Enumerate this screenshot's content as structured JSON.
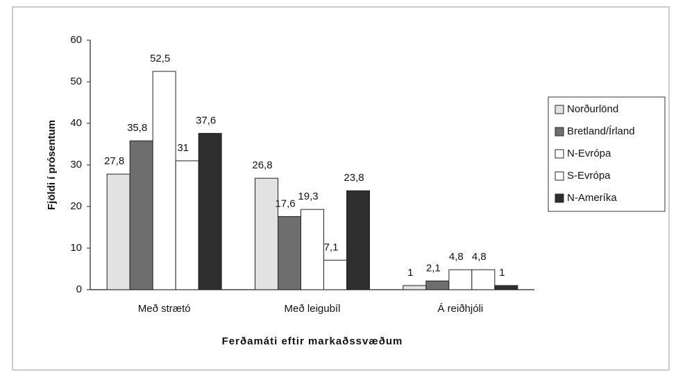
{
  "chart_data": {
    "type": "bar",
    "x_label": "Ferðamáti eftir markaðssvæðum",
    "y_label": "Fjöldi í prósentum",
    "categories": [
      "Með strætó",
      "Með leigubíl",
      "Á reiðhjóli"
    ],
    "series": [
      {
        "name": "Norðurlönd",
        "color": "#e2e2e2",
        "values": [
          27.8,
          26.8,
          1
        ],
        "value_labels": [
          "27,8",
          "26,8",
          "1"
        ]
      },
      {
        "name": "Bretland/Írland",
        "color": "#6e6e6e",
        "values": [
          35.8,
          17.6,
          2.1
        ],
        "value_labels": [
          "35,8",
          "17,6",
          "2,1"
        ]
      },
      {
        "name": "N-Evrópa",
        "color": "#ffffff",
        "values": [
          52.5,
          19.3,
          4.8
        ],
        "value_labels": [
          "52,5",
          "19,3",
          "4,8"
        ]
      },
      {
        "name": "S-Evrópa",
        "color": "#ffffff",
        "values": [
          31,
          7.1,
          4.8
        ],
        "value_labels": [
          "31",
          "7,1",
          "4,8"
        ]
      },
      {
        "name": "N-Ameríka",
        "color": "#2e2e2e",
        "values": [
          37.6,
          23.8,
          1
        ],
        "value_labels": [
          "37,6",
          "23,8",
          "1"
        ]
      }
    ],
    "ylim": [
      0,
      60
    ],
    "yticks": [
      0,
      10,
      20,
      30,
      40,
      50,
      60
    ],
    "grid": false,
    "legend": "right"
  }
}
